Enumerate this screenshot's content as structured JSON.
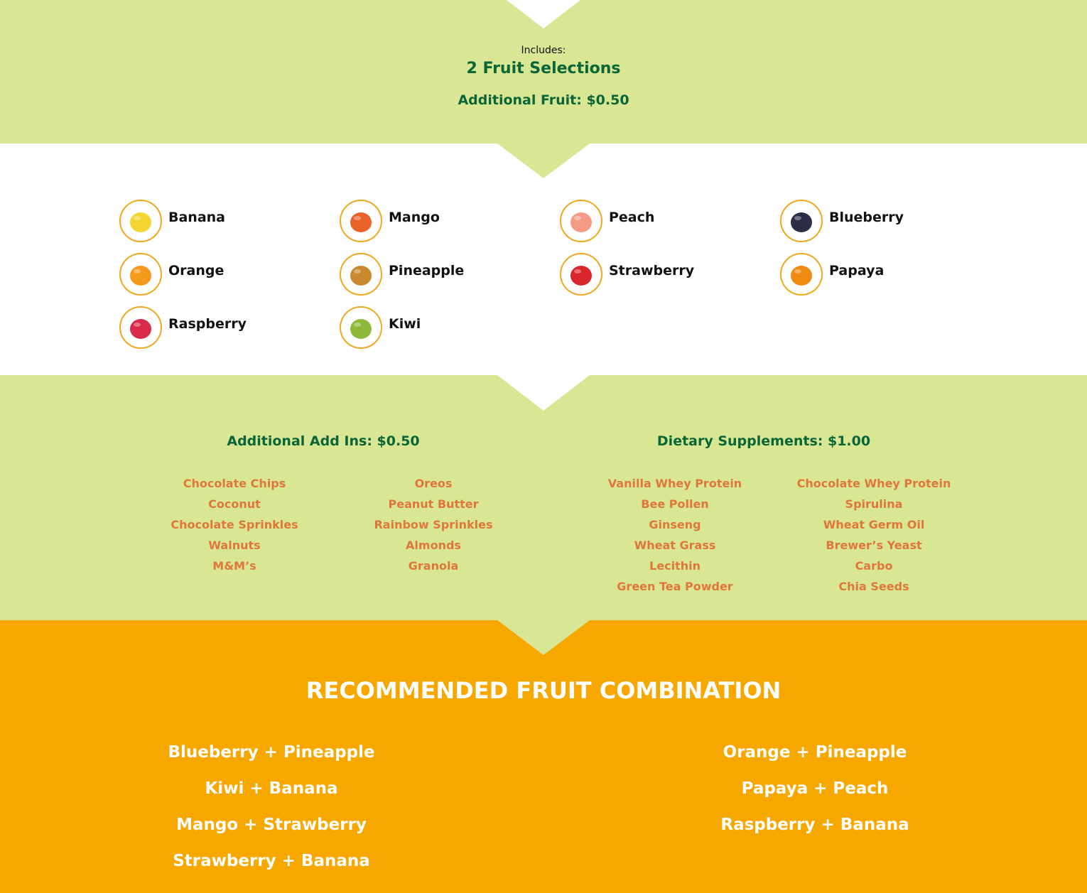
{
  "header": {
    "includes_label": "Includes:",
    "selections": "2 Fruit Selections",
    "additional_fruit": "Additional Fruit: $0.50"
  },
  "fruits": [
    {
      "name": "Banana",
      "color": "#f5d531"
    },
    {
      "name": "Mango",
      "color": "#e8622a"
    },
    {
      "name": "Peach",
      "color": "#f59a85"
    },
    {
      "name": "Blueberry",
      "color": "#2a2d45"
    },
    {
      "name": "Orange",
      "color": "#f59a1c"
    },
    {
      "name": "Pineapple",
      "color": "#c9892e"
    },
    {
      "name": "Strawberry",
      "color": "#d9262c"
    },
    {
      "name": "Papaya",
      "color": "#f08a10"
    },
    {
      "name": "Raspberry",
      "color": "#d92a4a"
    },
    {
      "name": "Kiwi",
      "color": "#8fb83a"
    }
  ],
  "addins": {
    "title": "Additional Add Ins: $0.50",
    "col1": [
      "Chocolate Chips",
      "Coconut",
      "Chocolate Sprinkles",
      "Walnuts",
      "M&M’s"
    ],
    "col2": [
      "Oreos",
      "Peanut Butter",
      "Rainbow Sprinkles",
      "Almonds",
      "Granola"
    ]
  },
  "supplements": {
    "title": "Dietary Supplements: $1.00",
    "col1": [
      "Vanilla Whey Protein",
      "Bee Pollen",
      "Ginseng",
      "Wheat Grass",
      "Lecithin",
      "Green Tea Powder"
    ],
    "col2": [
      "Chocolate Whey Protein",
      "Spirulina",
      "Wheat Germ Oil",
      "Brewer’s Yeast",
      "Carbo",
      "Chia Seeds"
    ]
  },
  "recommended": {
    "title": "RECOMMENDED FRUIT COMBINATION",
    "left": [
      "Blueberry + Pineapple",
      "Kiwi + Banana",
      "Mango + Strawberry",
      "Strawberry + Banana"
    ],
    "right": [
      "Orange + Pineapple",
      "Papaya + Peach",
      "Raspberry + Banana"
    ]
  },
  "colors": {
    "light_green": "#d9e794",
    "dark_green": "#0a6537",
    "orange_text": "#e0773a",
    "orange_bg": "#f6a800"
  }
}
